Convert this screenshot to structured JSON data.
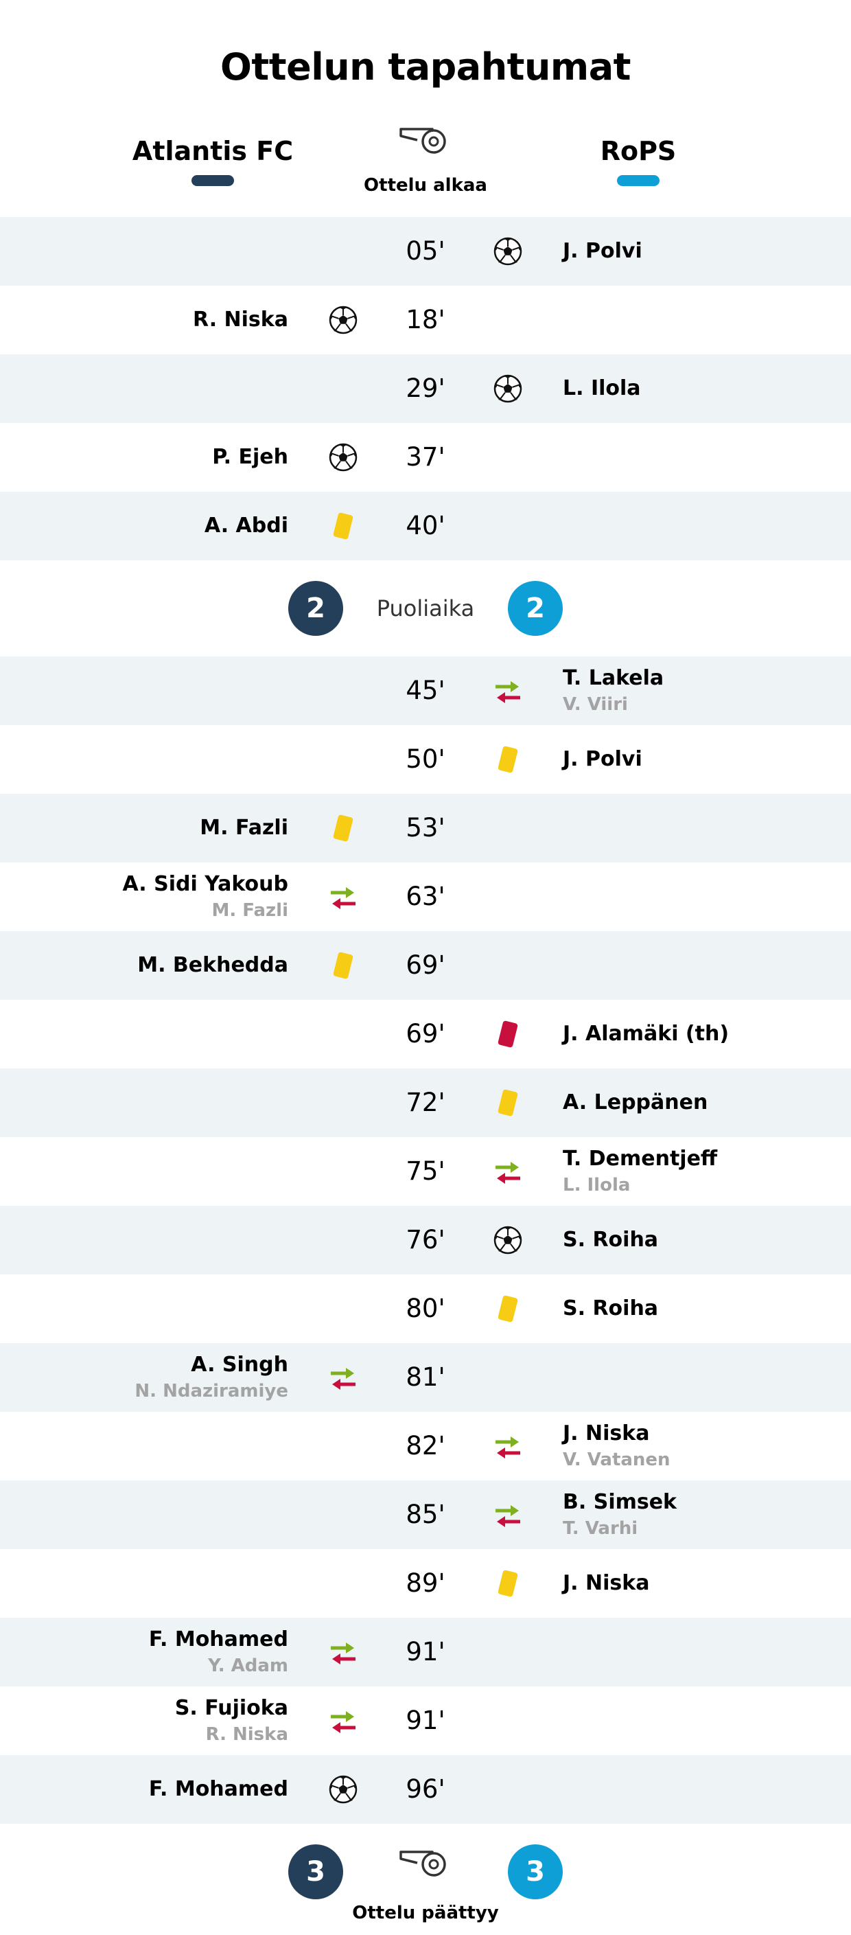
{
  "title": "Ottelun tapahtumat",
  "colors": {
    "home": "#243f5a",
    "away": "#0d9fd6",
    "yellow": "#f6cc15",
    "red": "#c8103e",
    "sub_in": "#7fb01f",
    "sub_out": "#c8103e",
    "row_shade": "#eef3f6"
  },
  "teams": {
    "home": "Atlantis FC",
    "away": "RoPS"
  },
  "start_label": "Ottelu alkaa",
  "end_label": "Ottelu päättyy",
  "halftime": {
    "label": "Puoliaika",
    "home_score": "2",
    "away_score": "2"
  },
  "fulltime": {
    "home_score": "3",
    "away_score": "3"
  },
  "first_half": [
    {
      "minute": "05'",
      "side": "away",
      "type": "goal",
      "player": "J. Polvi"
    },
    {
      "minute": "18'",
      "side": "home",
      "type": "goal",
      "player": "R. Niska"
    },
    {
      "minute": "29'",
      "side": "away",
      "type": "goal",
      "player": "L. Ilola"
    },
    {
      "minute": "37'",
      "side": "home",
      "type": "goal",
      "player": "P. Ejeh"
    },
    {
      "minute": "40'",
      "side": "home",
      "type": "yellow",
      "player": "A. Abdi"
    }
  ],
  "second_half": [
    {
      "minute": "45'",
      "side": "away",
      "type": "sub",
      "player": "T. Lakela",
      "out": "V. Viiri"
    },
    {
      "minute": "50'",
      "side": "away",
      "type": "yellow",
      "player": "J. Polvi"
    },
    {
      "minute": "53'",
      "side": "home",
      "type": "yellow",
      "player": "M. Fazli"
    },
    {
      "minute": "63'",
      "side": "home",
      "type": "sub",
      "player": "A. Sidi Yakoub",
      "out": "M. Fazli"
    },
    {
      "minute": "69'",
      "side": "home",
      "type": "yellow",
      "player": "M. Bekhedda"
    },
    {
      "minute": "69'",
      "side": "away",
      "type": "red",
      "player": "J. Alamäki (th)"
    },
    {
      "minute": "72'",
      "side": "away",
      "type": "yellow",
      "player": "A. Leppänen"
    },
    {
      "minute": "75'",
      "side": "away",
      "type": "sub",
      "player": "T. Dementjeff",
      "out": "L. Ilola"
    },
    {
      "minute": "76'",
      "side": "away",
      "type": "goal",
      "player": "S. Roiha"
    },
    {
      "minute": "80'",
      "side": "away",
      "type": "yellow",
      "player": "S. Roiha"
    },
    {
      "minute": "81'",
      "side": "home",
      "type": "sub",
      "player": "A. Singh",
      "out": "N. Ndaziramiye"
    },
    {
      "minute": "82'",
      "side": "away",
      "type": "sub",
      "player": "J. Niska",
      "out": "V. Vatanen"
    },
    {
      "minute": "85'",
      "side": "away",
      "type": "sub",
      "player": "B. Simsek",
      "out": "T. Varhi"
    },
    {
      "minute": "89'",
      "side": "away",
      "type": "yellow",
      "player": "J. Niska"
    },
    {
      "minute": "91'",
      "side": "home",
      "type": "sub",
      "player": "F. Mohamed",
      "out": "Y. Adam"
    },
    {
      "minute": "91'",
      "side": "home",
      "type": "sub",
      "player": "S. Fujioka",
      "out": "R. Niska"
    },
    {
      "minute": "96'",
      "side": "home",
      "type": "goal",
      "player": "F. Mohamed"
    }
  ]
}
